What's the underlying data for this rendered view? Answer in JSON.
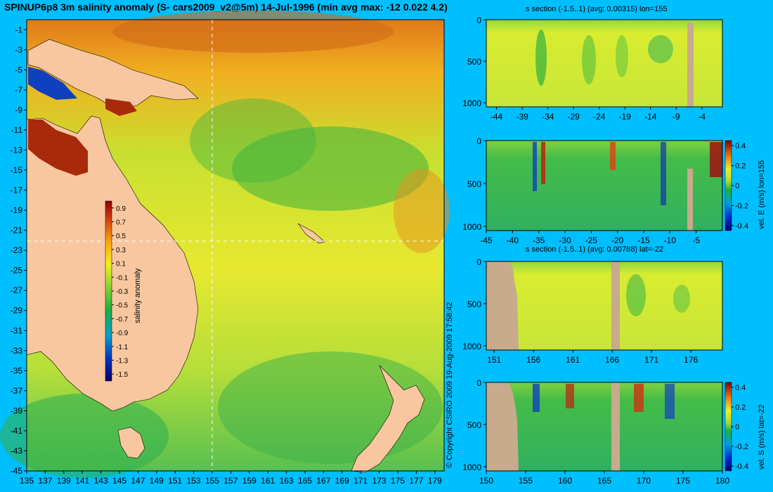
{
  "title": "SPINUP6p8 3m salinity anomaly (S- cars2009_v2@5m) 14-Jul-1996 (min avg max: -12 0.022 4.2)",
  "copyright": "© Copyright CSIRO 2009   19-Aug-2009 17:58:42",
  "colors": {
    "background": "#00bfff",
    "land": "#f9c79f",
    "section_land": "#c8aa8c"
  },
  "chart_data": [
    {
      "type": "heatmap",
      "name": "map",
      "title": "SPINUP6p8 3m salinity anomaly (S- cars2009_v2@5m) 14-Jul-1996 (min avg max: -12 0.022 4.2)",
      "xlim": [
        135,
        180
      ],
      "ylim": [
        -45,
        0
      ],
      "x_ticks": [
        135,
        137,
        139,
        141,
        143,
        145,
        147,
        149,
        151,
        153,
        155,
        157,
        159,
        161,
        163,
        165,
        167,
        169,
        171,
        173,
        175,
        177,
        179
      ],
      "y_ticks": [
        -1,
        -3,
        -5,
        -7,
        -9,
        -11,
        -13,
        -15,
        -17,
        -19,
        -21,
        -23,
        -25,
        -27,
        -29,
        -31,
        -33,
        -35,
        -37,
        -39,
        -41,
        -43,
        -45
      ],
      "section_lines": {
        "lon": 155,
        "lat": -22
      },
      "colorbar": {
        "label": "salinity anomaly",
        "ticks": [
          "0.9",
          "0.7",
          "0.5",
          "0.3",
          "0.1",
          "-0.1",
          "-0.3",
          "-0.5",
          "-0.7",
          "-0.9",
          "-1.1",
          "-1.3",
          "-1.5"
        ],
        "range": [
          -1.6,
          1.0
        ]
      }
    },
    {
      "type": "heatmap",
      "name": "section-s-lon155",
      "title": "s section (-1.5..1) (avg: 0.00315) lon=155",
      "x_ticks": [
        "-44",
        "-39",
        "-34",
        "-29",
        "-24",
        "-19",
        "-14",
        "-9",
        "-4"
      ],
      "y_ticks": [
        "0",
        "500",
        "1000"
      ],
      "xlim": [
        -46,
        0
      ],
      "ylim": [
        1050,
        0
      ]
    },
    {
      "type": "heatmap",
      "name": "section-velE-lon155",
      "title": "",
      "x_ticks": [
        "-45",
        "-40",
        "-35",
        "-30",
        "-25",
        "-20",
        "-15",
        "-10",
        "-5"
      ],
      "y_ticks": [
        "0",
        "500",
        "1000"
      ],
      "xlim": [
        -45,
        0
      ],
      "ylim": [
        1050,
        0
      ],
      "colorbar": {
        "label": "vel. E (m/s) lon=155",
        "ticks": [
          "0.4",
          "0.2",
          "0",
          "-0.2",
          "-0.4"
        ],
        "range": [
          -0.45,
          0.45
        ]
      }
    },
    {
      "type": "heatmap",
      "name": "section-s-lat-22",
      "title": "s section (-1.5..1) (avg: 0.00788) lat=-22",
      "x_ticks": [
        "151",
        "156",
        "161",
        "166",
        "171",
        "176"
      ],
      "y_ticks": [
        "0",
        "500",
        "1000"
      ],
      "xlim": [
        150,
        180
      ],
      "ylim": [
        1050,
        0
      ]
    },
    {
      "type": "heatmap",
      "name": "section-velS-lat-22",
      "title": "",
      "x_ticks": [
        "150",
        "155",
        "160",
        "165",
        "170",
        "175",
        "180"
      ],
      "y_ticks": [
        "0",
        "500",
        "1000"
      ],
      "xlim": [
        150,
        180
      ],
      "ylim": [
        1050,
        0
      ],
      "colorbar": {
        "label": "vel. S (m/s) lat=-22",
        "ticks": [
          "0.4",
          "0.2",
          "0",
          "-0.2",
          "-0.4"
        ],
        "range": [
          -0.45,
          0.45
        ]
      }
    }
  ]
}
